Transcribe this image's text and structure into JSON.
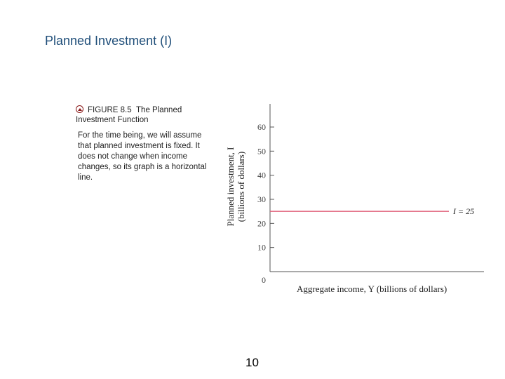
{
  "slide": {
    "title": "Planned Investment (I)",
    "page_number": "10"
  },
  "figure": {
    "caption_label": "FIGURE 8.5",
    "caption_title": "The Planned Investment Function",
    "description": "For the time being, we will assume that planned investment is fixed. It does not change when income changes, so its graph is a horizontal line."
  },
  "colors": {
    "title": "#1f4e79",
    "line": "#e0607a",
    "axis": "#555555"
  },
  "chart_data": {
    "type": "line",
    "xlabel": "Aggregate income, Y (billions of dollars)",
    "ylabel_line1": "Planned investment, I",
    "ylabel_line2": "(billions of dollars)",
    "ylim": [
      0,
      60
    ],
    "yticks": [
      10,
      20,
      30,
      40,
      50,
      60
    ],
    "ytick_labels": [
      "10",
      "20",
      "30",
      "40",
      "50",
      "60"
    ],
    "origin_label": "0",
    "series": [
      {
        "name": "I = 25",
        "y_constant": 25
      }
    ],
    "annotations": [
      {
        "text": "I = 25",
        "y": 25
      }
    ],
    "grid": false
  }
}
